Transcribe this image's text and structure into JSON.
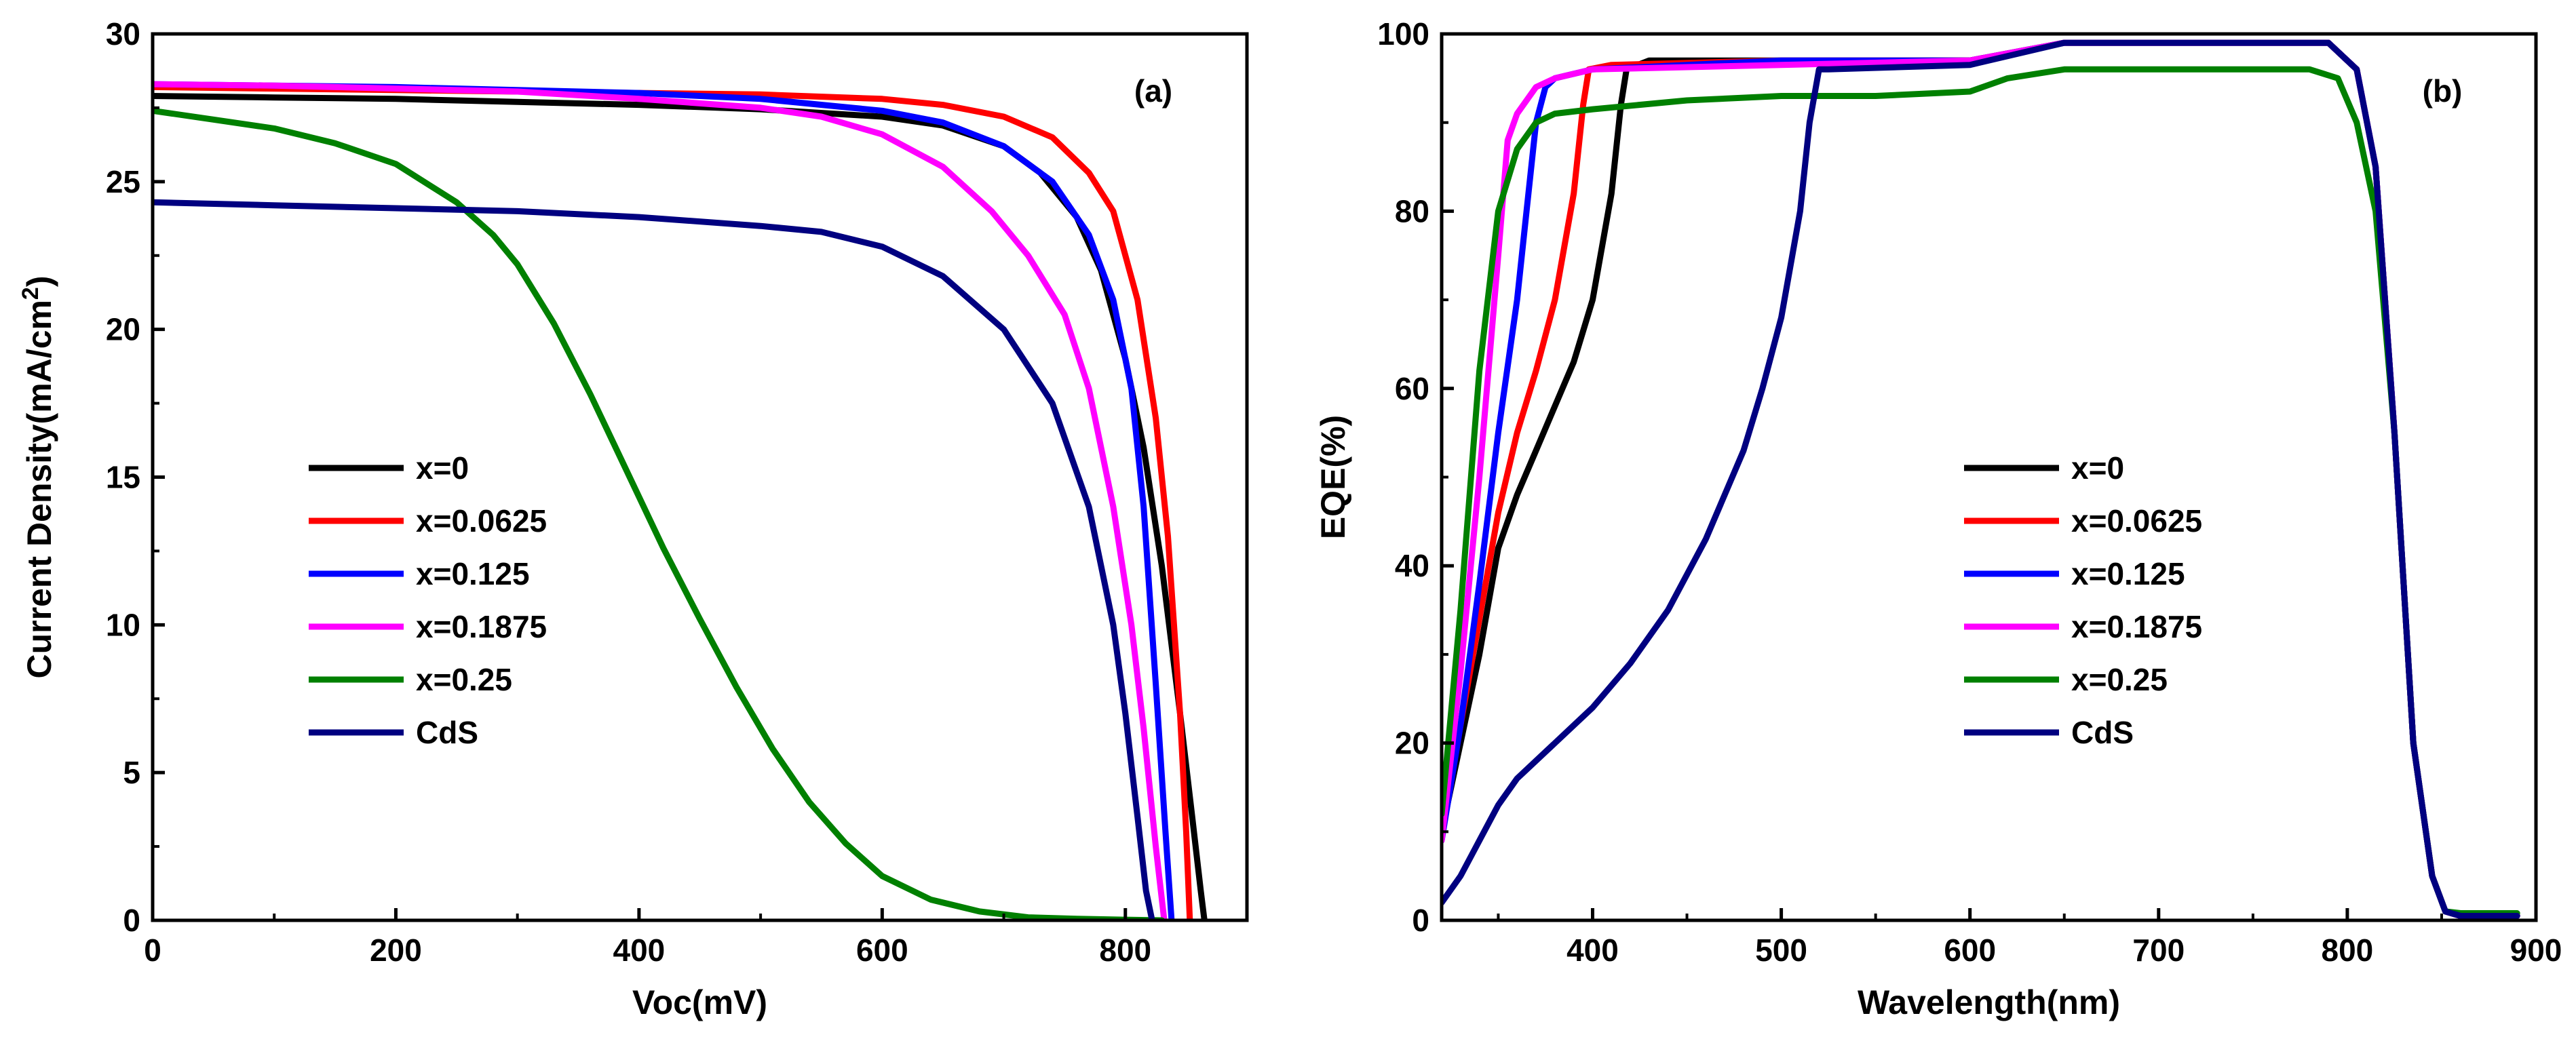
{
  "chart_data": [
    {
      "type": "line",
      "panel_label": "(a)",
      "xlabel": "Voc(mV)",
      "ylabel": "Current Density(mA/cm",
      "ylabel_sup": "2",
      "ylabel_close": ")",
      "xlim": [
        0,
        900
      ],
      "ylim": [
        0,
        30
      ],
      "xticks": [
        0,
        200,
        400,
        600,
        800
      ],
      "yticks": [
        0,
        5,
        10,
        15,
        20,
        25,
        30
      ],
      "legend_position": "center-left",
      "series": [
        {
          "name": "x=0",
          "color": "#000000",
          "x": [
            0,
            100,
            200,
            300,
            400,
            500,
            600,
            650,
            700,
            730,
            760,
            780,
            800,
            815,
            830,
            845,
            855,
            862,
            865
          ],
          "y": [
            27.9,
            27.85,
            27.8,
            27.7,
            27.6,
            27.45,
            27.2,
            26.9,
            26.2,
            25.3,
            23.8,
            22.0,
            19.0,
            16.0,
            12.0,
            7.0,
            3.5,
            1.0,
            0
          ]
        },
        {
          "name": "x=0.0625",
          "color": "#ff0000",
          "x": [
            0,
            100,
            200,
            300,
            400,
            500,
            600,
            650,
            700,
            740,
            770,
            790,
            810,
            825,
            835,
            845,
            850,
            853
          ],
          "y": [
            28.2,
            28.15,
            28.1,
            28.05,
            28.0,
            27.95,
            27.8,
            27.6,
            27.2,
            26.5,
            25.3,
            24.0,
            21.0,
            17.0,
            13.0,
            7.0,
            3.0,
            0
          ]
        },
        {
          "name": "x=0.125",
          "color": "#0000ff",
          "x": [
            0,
            100,
            200,
            300,
            400,
            500,
            600,
            650,
            700,
            740,
            770,
            790,
            805,
            815,
            825,
            833,
            838
          ],
          "y": [
            28.3,
            28.25,
            28.2,
            28.1,
            28.0,
            27.8,
            27.4,
            27.0,
            26.2,
            25.0,
            23.2,
            21.0,
            18.0,
            14.0,
            8.0,
            3.0,
            0
          ]
        },
        {
          "name": "x=0.1875",
          "color": "#ff00ff",
          "x": [
            0,
            100,
            200,
            300,
            400,
            500,
            550,
            600,
            650,
            690,
            720,
            750,
            770,
            790,
            805,
            815,
            825,
            832
          ],
          "y": [
            28.3,
            28.25,
            28.15,
            28.05,
            27.8,
            27.5,
            27.2,
            26.6,
            25.5,
            24.0,
            22.5,
            20.5,
            18.0,
            14.0,
            10.0,
            6.5,
            2.5,
            0
          ]
        },
        {
          "name": "x=0.25",
          "color": "#008000",
          "x": [
            0,
            50,
            100,
            150,
            200,
            250,
            280,
            300,
            330,
            360,
            390,
            420,
            450,
            480,
            510,
            540,
            570,
            600,
            640,
            680,
            720,
            760,
            800,
            830
          ],
          "y": [
            27.4,
            27.1,
            26.8,
            26.3,
            25.6,
            24.3,
            23.2,
            22.2,
            20.2,
            17.8,
            15.2,
            12.6,
            10.2,
            7.9,
            5.8,
            4.0,
            2.6,
            1.5,
            0.7,
            0.3,
            0.1,
            0.05,
            0.02,
            0
          ]
        },
        {
          "name": "CdS",
          "color": "#000080",
          "x": [
            0,
            100,
            200,
            300,
            400,
            500,
            550,
            600,
            650,
            700,
            740,
            770,
            790,
            800,
            810,
            817,
            822
          ],
          "y": [
            24.3,
            24.2,
            24.1,
            24.0,
            23.8,
            23.5,
            23.3,
            22.8,
            21.8,
            20.0,
            17.5,
            14.0,
            10.0,
            7.0,
            3.5,
            1.0,
            0
          ]
        }
      ]
    },
    {
      "type": "line",
      "panel_label": "(b)",
      "xlabel": "Wavelength(nm)",
      "ylabel": "EQE(%)",
      "xlim": [
        320,
        900
      ],
      "ylim": [
        0,
        100
      ],
      "xticks": [
        400,
        500,
        600,
        700,
        800,
        900
      ],
      "yticks": [
        0,
        20,
        40,
        60,
        80,
        100
      ],
      "legend_position": "center-left",
      "series": [
        {
          "name": "x=0",
          "color": "#000000",
          "x": [
            320,
            330,
            340,
            350,
            360,
            370,
            380,
            390,
            400,
            410,
            415,
            418,
            430,
            500,
            600,
            650,
            700,
            790,
            805,
            815,
            825,
            835,
            845,
            852,
            860,
            875,
            890
          ],
          "y": [
            10,
            20,
            30,
            42,
            48,
            53,
            58,
            63,
            70,
            82,
            92,
            96,
            97,
            97,
            97,
            99,
            99,
            99,
            96,
            85,
            55,
            20,
            5,
            1,
            0.5,
            0.5,
            0.5
          ]
        },
        {
          "name": "x=0.0625",
          "color": "#ff0000",
          "x": [
            320,
            330,
            340,
            350,
            360,
            370,
            380,
            390,
            395,
            398,
            410,
            500,
            600,
            650,
            700,
            790,
            805,
            815,
            825,
            835,
            845,
            852,
            860,
            875,
            890
          ],
          "y": [
            10,
            22,
            34,
            46,
            55,
            62,
            70,
            82,
            92,
            96,
            96.5,
            97,
            97,
            99,
            99,
            99,
            96,
            85,
            55,
            20,
            5,
            1,
            0.5,
            0.5,
            0.5
          ]
        },
        {
          "name": "x=0.125",
          "color": "#0000ff",
          "x": [
            320,
            330,
            340,
            350,
            360,
            365,
            370,
            375,
            380,
            400,
            500,
            600,
            650,
            700,
            790,
            805,
            815,
            825,
            835,
            845,
            852,
            860,
            875,
            890
          ],
          "y": [
            9,
            22,
            38,
            55,
            70,
            80,
            90,
            94,
            95,
            96,
            97,
            97,
            99,
            99,
            99,
            96,
            85,
            55,
            20,
            5,
            1,
            0.5,
            0.5,
            0.5
          ]
        },
        {
          "name": "x=0.1875",
          "color": "#ff00ff",
          "x": [
            320,
            330,
            340,
            350,
            355,
            360,
            370,
            380,
            400,
            500,
            600,
            650,
            700,
            790,
            805,
            815,
            825,
            835,
            845,
            852,
            860,
            875,
            890
          ],
          "y": [
            9,
            28,
            50,
            75,
            88,
            91,
            94,
            95,
            96,
            96.5,
            97,
            99,
            99,
            99,
            96,
            85,
            55,
            20,
            5,
            1,
            0.5,
            0.5,
            0.5
          ]
        },
        {
          "name": "x=0.25",
          "color": "#008000",
          "x": [
            320,
            330,
            340,
            350,
            360,
            370,
            380,
            400,
            450,
            500,
            550,
            600,
            620,
            650,
            700,
            780,
            795,
            805,
            815,
            825,
            835,
            845,
            852,
            860,
            875,
            890
          ],
          "y": [
            12,
            35,
            62,
            80,
            87,
            90,
            91,
            91.5,
            92.5,
            93,
            93,
            93.5,
            95,
            96,
            96,
            96,
            95,
            90,
            80,
            55,
            20,
            5,
            1,
            0.8,
            0.8,
            0.8
          ]
        },
        {
          "name": "CdS",
          "color": "#000080",
          "x": [
            320,
            330,
            340,
            350,
            360,
            380,
            400,
            420,
            440,
            460,
            480,
            490,
            500,
            510,
            515,
            520,
            525,
            600,
            650,
            700,
            790,
            805,
            815,
            825,
            835,
            845,
            852,
            860,
            875,
            890
          ],
          "y": [
            2,
            5,
            9,
            13,
            16,
            20,
            24,
            29,
            35,
            43,
            53,
            60,
            68,
            80,
            90,
            96,
            96,
            96.5,
            99,
            99,
            99,
            96,
            85,
            55,
            20,
            5,
            1,
            0.5,
            0.5,
            0.5
          ]
        }
      ]
    }
  ]
}
